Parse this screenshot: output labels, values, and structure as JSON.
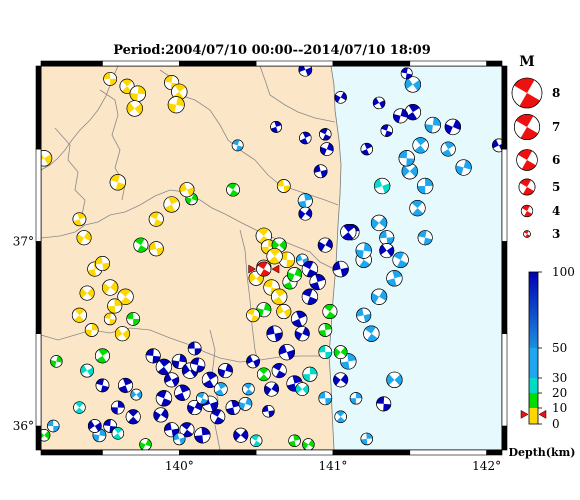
{
  "map": {
    "title": "Period:2004/07/10 00:00--2014/07/10 18:09",
    "lon_range": [
      139.1,
      142.1
    ],
    "lat_range": [
      35.87,
      37.95
    ],
    "lon_ticks": [
      {
        "value": 140,
        "label": "140°"
      },
      {
        "value": 141,
        "label": "141°"
      },
      {
        "value": 142,
        "label": "142°"
      }
    ],
    "lat_ticks": [
      {
        "value": 37,
        "label": "37°"
      },
      {
        "value": 36,
        "label": "36°"
      }
    ],
    "land_color": "#fbe6c8",
    "sea_color": "#e6fafd",
    "boundary_color": "#888888",
    "mainshock": {
      "lon": 140.55,
      "lat": 36.85,
      "depth_km": 6,
      "magnitude": 4
    }
  },
  "magnitude_legend": {
    "title": "M",
    "items": [
      {
        "magnitude": 8,
        "label": "8"
      },
      {
        "magnitude": 7,
        "label": "7"
      },
      {
        "magnitude": 6,
        "label": "6"
      },
      {
        "magnitude": 5,
        "label": "5"
      },
      {
        "magnitude": 4,
        "label": "4"
      },
      {
        "magnitude": 3,
        "label": "3"
      }
    ],
    "color": "#ee1111"
  },
  "depth_scale": {
    "title": "Depth(km)",
    "max_depth": 100,
    "ticks": [
      {
        "value": 100,
        "label": "100"
      },
      {
        "value": 50,
        "label": "50"
      },
      {
        "value": 30,
        "label": "30"
      },
      {
        "value": 20,
        "label": "20"
      },
      {
        "value": 10,
        "label": "10"
      },
      {
        "value": 0,
        "label": "0"
      }
    ],
    "bands": [
      {
        "from": 0,
        "to": 10,
        "color": "#ffd700"
      },
      {
        "from": 10,
        "to": 20,
        "color": "#00dd00"
      },
      {
        "from": 20,
        "to": 30,
        "color": "#00dcc8"
      },
      {
        "from": 30,
        "to": 50,
        "color": "#1ea6ee"
      },
      {
        "from": 50,
        "to": 100,
        "color": "#0000bb"
      }
    ],
    "marker_depth": 6
  },
  "chart_data": {
    "type": "scatter",
    "title": "Period:2004/07/10 00:00--2014/07/10 18:09",
    "x_label": "",
    "y_label": "",
    "xlim": [
      139.1,
      142.1
    ],
    "ylim": [
      35.87,
      37.95
    ],
    "series": [
      {
        "fields": [
          "lon",
          "lat",
          "depth_km",
          "magnitude"
        ],
        "points": [
          [
            139.55,
            37.88,
            8,
            3.8
          ],
          [
            139.66,
            37.84,
            8,
            4.0
          ],
          [
            139.73,
            37.8,
            9,
            4.2
          ],
          [
            139.71,
            37.72,
            8,
            4.2
          ],
          [
            139.95,
            37.86,
            7,
            4.0
          ],
          [
            140.0,
            37.81,
            8,
            4.2
          ],
          [
            139.98,
            37.74,
            9,
            4.3
          ],
          [
            139.12,
            37.45,
            8,
            4.2
          ],
          [
            139.6,
            37.32,
            8,
            4.2
          ],
          [
            139.95,
            37.2,
            6,
            4.2
          ],
          [
            140.08,
            37.23,
            16,
            3.6
          ],
          [
            140.05,
            37.28,
            8,
            4.0
          ],
          [
            139.85,
            37.12,
            8,
            4.0
          ],
          [
            139.35,
            37.12,
            8,
            3.8
          ],
          [
            139.38,
            37.02,
            8,
            4.0
          ],
          [
            139.85,
            36.96,
            8,
            4.0
          ],
          [
            139.75,
            36.98,
            16,
            4.0
          ],
          [
            139.45,
            36.85,
            9,
            4.0
          ],
          [
            139.55,
            36.75,
            9,
            4.2
          ],
          [
            139.5,
            36.88,
            8,
            4.0
          ],
          [
            139.65,
            36.7,
            8,
            4.2
          ],
          [
            139.58,
            36.65,
            9,
            4.0
          ],
          [
            139.4,
            36.72,
            7,
            4.0
          ],
          [
            139.7,
            36.58,
            18,
            3.8
          ],
          [
            139.35,
            36.6,
            9,
            4.0
          ],
          [
            139.43,
            36.52,
            8,
            3.8
          ],
          [
            139.63,
            36.5,
            9,
            4.0
          ],
          [
            139.55,
            36.58,
            8,
            3.6
          ],
          [
            139.5,
            36.38,
            10,
            4.0
          ],
          [
            139.2,
            36.35,
            10,
            3.6
          ],
          [
            139.4,
            36.3,
            25,
            3.8
          ],
          [
            140.38,
            37.52,
            45,
            3.5
          ],
          [
            140.82,
            37.56,
            75,
            3.6
          ],
          [
            140.96,
            37.5,
            80,
            3.8
          ],
          [
            140.82,
            37.93,
            75,
            3.8
          ],
          [
            140.95,
            37.58,
            80,
            3.6
          ],
          [
            140.63,
            37.62,
            70,
            3.5
          ],
          [
            141.05,
            37.78,
            85,
            3.6
          ],
          [
            140.92,
            37.38,
            72,
            3.8
          ],
          [
            140.35,
            37.28,
            12,
            3.8
          ],
          [
            140.82,
            37.22,
            40,
            4.0
          ],
          [
            140.82,
            37.15,
            55,
            3.8
          ],
          [
            140.68,
            37.3,
            5,
            3.8
          ],
          [
            140.55,
            37.03,
            5,
            4.2
          ],
          [
            140.58,
            36.97,
            8,
            4.0
          ],
          [
            140.65,
            36.98,
            15,
            4.0
          ],
          [
            140.7,
            36.9,
            5,
            4.2
          ],
          [
            140.62,
            36.92,
            7,
            4.2
          ],
          [
            140.55,
            36.86,
            6,
            4.0
          ],
          [
            140.5,
            36.8,
            5,
            4.0
          ],
          [
            140.6,
            36.75,
            8,
            4.2
          ],
          [
            140.65,
            36.7,
            6,
            4.2
          ],
          [
            140.55,
            36.63,
            10,
            4.0
          ],
          [
            140.68,
            36.62,
            5,
            4.0
          ],
          [
            140.48,
            36.6,
            8,
            3.8
          ],
          [
            140.72,
            36.78,
            15,
            4.0
          ],
          [
            140.75,
            36.82,
            18,
            4.0
          ],
          [
            140.8,
            36.9,
            30,
            3.6
          ],
          [
            140.85,
            36.85,
            50,
            4.2
          ],
          [
            140.9,
            36.78,
            50,
            4.2
          ],
          [
            140.95,
            36.98,
            60,
            4.0
          ],
          [
            141.05,
            36.85,
            55,
            4.2
          ],
          [
            141.2,
            36.9,
            45,
            4.2
          ],
          [
            141.12,
            37.05,
            55,
            4.2
          ],
          [
            141.3,
            37.1,
            45,
            4.2
          ],
          [
            141.35,
            37.02,
            48,
            4.0
          ],
          [
            141.55,
            37.18,
            45,
            4.2
          ],
          [
            141.6,
            37.3,
            45,
            4.2
          ],
          [
            141.5,
            37.38,
            45,
            4.2
          ],
          [
            141.48,
            37.45,
            40,
            4.2
          ],
          [
            141.57,
            37.52,
            45,
            4.2
          ],
          [
            141.65,
            37.63,
            40,
            4.2
          ],
          [
            141.52,
            37.85,
            40,
            4.2
          ],
          [
            141.48,
            37.91,
            80,
            3.5
          ],
          [
            141.52,
            37.7,
            60,
            4.2
          ],
          [
            141.44,
            37.68,
            60,
            4.0
          ],
          [
            141.3,
            37.75,
            75,
            3.6
          ],
          [
            141.35,
            37.6,
            75,
            3.6
          ],
          [
            141.22,
            37.5,
            70,
            3.6
          ],
          [
            141.78,
            37.62,
            75,
            4.2
          ],
          [
            141.32,
            37.3,
            26,
            4.2
          ],
          [
            141.44,
            36.9,
            48,
            4.2
          ],
          [
            141.4,
            36.8,
            45,
            4.2
          ],
          [
            141.3,
            36.7,
            45,
            4.2
          ],
          [
            141.2,
            36.6,
            48,
            4.0
          ],
          [
            141.25,
            36.5,
            45,
            4.2
          ],
          [
            141.1,
            36.35,
            45,
            4.2
          ],
          [
            141.05,
            36.25,
            50,
            4.0
          ],
          [
            140.95,
            36.15,
            45,
            3.8
          ],
          [
            141.05,
            36.05,
            40,
            3.6
          ],
          [
            141.15,
            36.15,
            45,
            3.6
          ],
          [
            141.4,
            36.25,
            48,
            4.2
          ],
          [
            141.33,
            36.12,
            55,
            4.0
          ],
          [
            141.1,
            37.05,
            50,
            4.2
          ],
          [
            141.2,
            36.95,
            45,
            4.2
          ],
          [
            141.35,
            36.95,
            55,
            4.0
          ],
          [
            141.6,
            37.02,
            48,
            4.0
          ],
          [
            141.75,
            37.5,
            48,
            4.0
          ],
          [
            141.85,
            37.4,
            45,
            4.2
          ],
          [
            142.08,
            37.52,
            70,
            3.8
          ],
          [
            140.85,
            36.7,
            80,
            4.2
          ],
          [
            140.78,
            36.58,
            80,
            4.2
          ],
          [
            140.8,
            36.5,
            85,
            4.0
          ],
          [
            140.7,
            36.4,
            80,
            4.2
          ],
          [
            140.65,
            36.3,
            90,
            4.0
          ],
          [
            140.75,
            36.23,
            80,
            4.2
          ],
          [
            140.6,
            36.2,
            85,
            4.0
          ],
          [
            140.62,
            36.5,
            80,
            4.2
          ],
          [
            140.98,
            36.62,
            15,
            4.0
          ],
          [
            140.95,
            36.52,
            18,
            3.8
          ],
          [
            141.05,
            36.4,
            18,
            3.8
          ],
          [
            140.95,
            36.4,
            22,
            3.8
          ],
          [
            140.55,
            36.28,
            12,
            3.8
          ],
          [
            140.85,
            36.28,
            25,
            4.0
          ],
          [
            140.8,
            36.2,
            25,
            3.8
          ],
          [
            139.83,
            36.38,
            80,
            4.0
          ],
          [
            139.9,
            36.32,
            80,
            4.2
          ],
          [
            140.0,
            36.35,
            80,
            4.0
          ],
          [
            140.07,
            36.3,
            85,
            4.2
          ],
          [
            140.12,
            36.33,
            85,
            4.0
          ],
          [
            140.2,
            36.25,
            80,
            4.2
          ],
          [
            140.3,
            36.3,
            80,
            4.0
          ],
          [
            139.95,
            36.25,
            75,
            4.0
          ],
          [
            139.9,
            36.15,
            80,
            4.2
          ],
          [
            140.02,
            36.18,
            80,
            4.2
          ],
          [
            140.1,
            36.1,
            80,
            4.0
          ],
          [
            140.2,
            36.12,
            85,
            4.2
          ],
          [
            140.25,
            36.05,
            80,
            4.0
          ],
          [
            140.35,
            36.1,
            80,
            4.0
          ],
          [
            139.88,
            36.06,
            80,
            4.0
          ],
          [
            139.95,
            35.98,
            75,
            4.0
          ],
          [
            140.05,
            35.98,
            80,
            4.0
          ],
          [
            140.15,
            35.95,
            80,
            4.2
          ],
          [
            140.4,
            35.95,
            80,
            4.0
          ],
          [
            140.1,
            36.42,
            80,
            3.8
          ],
          [
            139.7,
            36.05,
            70,
            4.0
          ],
          [
            139.6,
            36.1,
            75,
            3.8
          ],
          [
            139.72,
            36.17,
            30,
            3.5
          ],
          [
            139.55,
            36.0,
            55,
            3.8
          ],
          [
            139.6,
            35.96,
            20,
            3.6
          ],
          [
            139.48,
            35.95,
            45,
            3.8
          ],
          [
            139.45,
            36.0,
            70,
            3.8
          ],
          [
            139.5,
            36.22,
            75,
            3.8
          ],
          [
            140.27,
            36.2,
            45,
            3.8
          ],
          [
            140.43,
            36.12,
            45,
            3.8
          ],
          [
            140.48,
            36.35,
            60,
            3.8
          ],
          [
            140.15,
            36.15,
            45,
            3.6
          ],
          [
            139.65,
            36.22,
            80,
            4.0
          ],
          [
            139.78,
            35.9,
            15,
            3.6
          ],
          [
            140.0,
            35.93,
            45,
            3.6
          ],
          [
            140.5,
            35.92,
            25,
            3.6
          ],
          [
            140.75,
            35.92,
            12,
            3.6
          ],
          [
            140.84,
            35.9,
            14,
            3.6
          ],
          [
            140.58,
            36.08,
            75,
            3.6
          ],
          [
            140.45,
            36.2,
            45,
            3.6
          ],
          [
            141.22,
            35.93,
            45,
            3.6
          ],
          [
            139.12,
            35.95,
            15,
            3.6
          ],
          [
            139.18,
            36.0,
            40,
            3.6
          ],
          [
            139.35,
            36.1,
            20,
            3.6
          ]
        ]
      }
    ]
  }
}
